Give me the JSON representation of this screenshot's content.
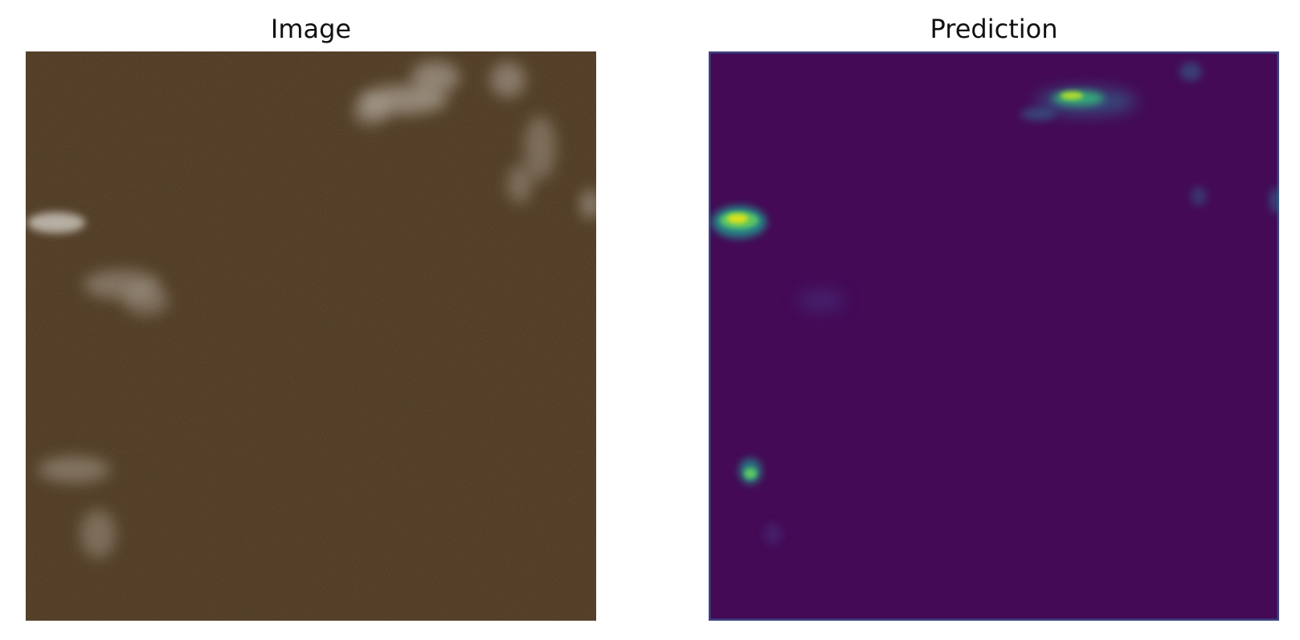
{
  "panels": [
    {
      "title": "Image",
      "kind": "photo",
      "base_color": "#47331d",
      "feature_color": "#c8c2b8"
    },
    {
      "title": "Prediction",
      "kind": "heatmap",
      "colormap": "viridis",
      "base_color": "#440a55",
      "edge_color": "#3b528b",
      "hot_color": "#e2e418",
      "mid_color": "#35b779"
    }
  ]
}
